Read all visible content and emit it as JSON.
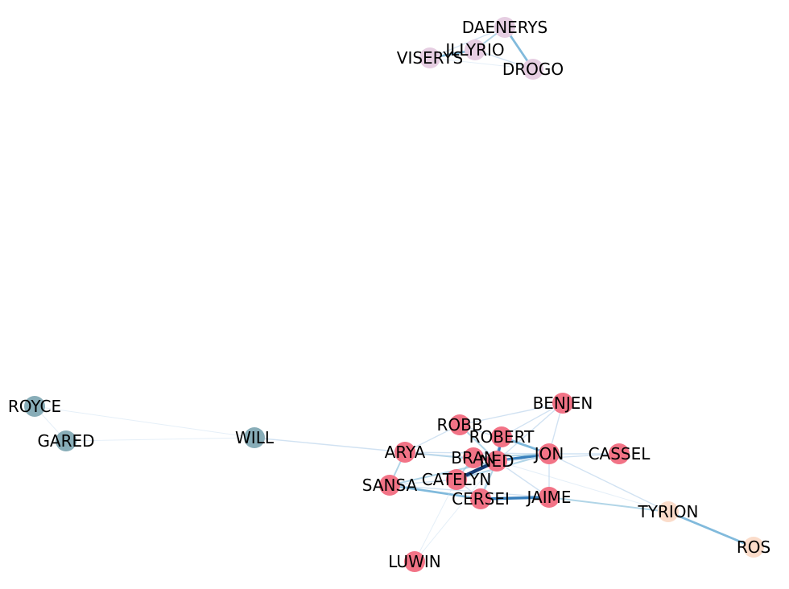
{
  "graph": {
    "colors": {
      "stark": "#f27386",
      "targaryen": "#e6cee2",
      "nightswatch": "#88adb8",
      "lannister": "#fbdcca",
      "edge_light": "#c6dbef",
      "edge_mid": "#6baed6",
      "edge_dark": "#08306b"
    },
    "nodes": [
      {
        "id": "DAENERYS",
        "label": "DAENERYS",
        "group": "targaryen"
      },
      {
        "id": "ILLYRIO",
        "label": "ILLYRIO",
        "group": "targaryen"
      },
      {
        "id": "VISERYS",
        "label": "VISERYS",
        "group": "targaryen"
      },
      {
        "id": "DROGO",
        "label": "DROGO",
        "group": "targaryen"
      },
      {
        "id": "ROYCE",
        "label": "ROYCE",
        "group": "nightswatch"
      },
      {
        "id": "GARED",
        "label": "GARED",
        "group": "nightswatch"
      },
      {
        "id": "WILL",
        "label": "WILL",
        "group": "nightswatch"
      },
      {
        "id": "BENJEN",
        "label": "BENJEN",
        "group": "stark"
      },
      {
        "id": "ROBB",
        "label": "ROBB",
        "group": "stark"
      },
      {
        "id": "ROBERT",
        "label": "ROBERT",
        "group": "stark"
      },
      {
        "id": "ARYA",
        "label": "ARYA",
        "group": "stark"
      },
      {
        "id": "JON",
        "label": "JON",
        "group": "stark"
      },
      {
        "id": "CASSEL",
        "label": "CASSEL",
        "group": "stark"
      },
      {
        "id": "BRAN",
        "label": "BRAN",
        "group": "stark"
      },
      {
        "id": "NED",
        "label": "NED",
        "group": "stark"
      },
      {
        "id": "CATELYN",
        "label": "CATELYN",
        "group": "stark"
      },
      {
        "id": "SANSA",
        "label": "SANSA",
        "group": "stark"
      },
      {
        "id": "CERSEI",
        "label": "CERSEI",
        "group": "stark"
      },
      {
        "id": "JAIME",
        "label": "JAIME",
        "group": "stark"
      },
      {
        "id": "LUWIN",
        "label": "LUWIN",
        "group": "stark"
      },
      {
        "id": "TYRION",
        "label": "TYRION",
        "group": "lannister"
      },
      {
        "id": "ROS",
        "label": "ROS",
        "group": "lannister"
      }
    ],
    "edges": [
      {
        "source": "DAENERYS",
        "target": "ILLYRIO",
        "weight": 3
      },
      {
        "source": "DAENERYS",
        "target": "DROGO",
        "weight": 4
      },
      {
        "source": "DAENERYS",
        "target": "VISERYS",
        "weight": 2
      },
      {
        "source": "ILLYRIO",
        "target": "VISERYS",
        "weight": 4
      },
      {
        "source": "ILLYRIO",
        "target": "DROGO",
        "weight": 2
      },
      {
        "source": "VISERYS",
        "target": "DROGO",
        "weight": 1
      },
      {
        "source": "ROYCE",
        "target": "GARED",
        "weight": 1
      },
      {
        "source": "ROYCE",
        "target": "WILL",
        "weight": 1
      },
      {
        "source": "GARED",
        "target": "WILL",
        "weight": 1
      },
      {
        "source": "WILL",
        "target": "ARYA",
        "weight": 2
      },
      {
        "source": "ROBB",
        "target": "BENJEN",
        "weight": 2
      },
      {
        "source": "BENJEN",
        "target": "JON",
        "weight": 2
      },
      {
        "source": "BENJEN",
        "target": "ROBERT",
        "weight": 2
      },
      {
        "source": "BENJEN",
        "target": "NED",
        "weight": 2
      },
      {
        "source": "ROBB",
        "target": "ARYA",
        "weight": 2
      },
      {
        "source": "ROBB",
        "target": "NED",
        "weight": 3
      },
      {
        "source": "ROBB",
        "target": "JON",
        "weight": 2
      },
      {
        "source": "ROBERT",
        "target": "JON",
        "weight": 4
      },
      {
        "source": "ROBERT",
        "target": "NED",
        "weight": 5
      },
      {
        "source": "ARYA",
        "target": "NED",
        "weight": 3
      },
      {
        "source": "ARYA",
        "target": "JON",
        "weight": 2
      },
      {
        "source": "ARYA",
        "target": "SANSA",
        "weight": 3
      },
      {
        "source": "ARYA",
        "target": "BRAN",
        "weight": 2
      },
      {
        "source": "JON",
        "target": "NED",
        "weight": 5
      },
      {
        "source": "JON",
        "target": "CASSEL",
        "weight": 2
      },
      {
        "source": "JON",
        "target": "TYRION",
        "weight": 2
      },
      {
        "source": "JON",
        "target": "CATELYN",
        "weight": 3
      },
      {
        "source": "NED",
        "target": "CASSEL",
        "weight": 2
      },
      {
        "source": "BRAN",
        "target": "NED",
        "weight": 4
      },
      {
        "source": "BRAN",
        "target": "JON",
        "weight": 3
      },
      {
        "source": "BRAN",
        "target": "CATELYN",
        "weight": 3
      },
      {
        "source": "CATELYN",
        "target": "NED",
        "weight": 6
      },
      {
        "source": "SANSA",
        "target": "CATELYN",
        "weight": 2
      },
      {
        "source": "SANSA",
        "target": "NED",
        "weight": 3
      },
      {
        "source": "SANSA",
        "target": "CERSEI",
        "weight": 4
      },
      {
        "source": "SANSA",
        "target": "JAIME",
        "weight": 2
      },
      {
        "source": "CERSEI",
        "target": "JAIME",
        "weight": 5
      },
      {
        "source": "CERSEI",
        "target": "NED",
        "weight": 3
      },
      {
        "source": "CERSEI",
        "target": "ROBERT",
        "weight": 2
      },
      {
        "source": "JAIME",
        "target": "NED",
        "weight": 2
      },
      {
        "source": "JAIME",
        "target": "TYRION",
        "weight": 3
      },
      {
        "source": "JAIME",
        "target": "JON",
        "weight": 2
      },
      {
        "source": "CATELYN",
        "target": "CERSEI",
        "weight": 2
      },
      {
        "source": "LUWIN",
        "target": "CATELYN",
        "weight": 1
      },
      {
        "source": "LUWIN",
        "target": "NED",
        "weight": 1
      },
      {
        "source": "TYRION",
        "target": "ROS",
        "weight": 4
      },
      {
        "source": "TYRION",
        "target": "NED",
        "weight": 1
      }
    ]
  }
}
